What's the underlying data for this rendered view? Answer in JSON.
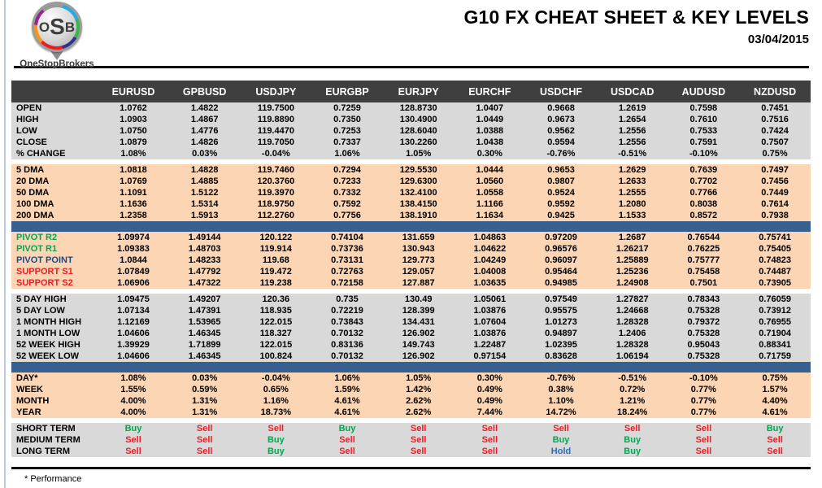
{
  "logo": {
    "abbr": "OSB",
    "name": "OneStopBrokers"
  },
  "header": {
    "title": "G10 FX CHEAT SHEET & KEY LEVELS",
    "date": "03/04/2015"
  },
  "colors": {
    "header_bg": "#3F3F3F",
    "row_gray": "#D9D9D9",
    "row_peach": "#FBD5B4",
    "divider_blue": "#376091",
    "buy_green": "#00A651",
    "sell_red": "#EE1C25",
    "hold_blue": "#2E6DB4",
    "pivot_navy": "#1F497D",
    "left_accent": "#b9cade"
  },
  "table": {
    "columns": [
      "EURUSD",
      "GPBUSD",
      "USDJPY",
      "EURGBP",
      "EURJPY",
      "EURCHF",
      "USDCHF",
      "USDCAD",
      "AUDUSD",
      "NZDUSD"
    ],
    "sections": [
      {
        "name": "ohlc",
        "bg": "gray",
        "rows": [
          {
            "label": "OPEN",
            "values": [
              "1.0762",
              "1.4822",
              "119.7500",
              "0.7259",
              "128.8730",
              "1.0407",
              "0.9668",
              "1.2619",
              "0.7598",
              "0.7451"
            ]
          },
          {
            "label": "HIGH",
            "values": [
              "1.0903",
              "1.4867",
              "119.8890",
              "0.7350",
              "130.4900",
              "1.0449",
              "0.9673",
              "1.2654",
              "0.7610",
              "0.7516"
            ]
          },
          {
            "label": "LOW",
            "values": [
              "1.0750",
              "1.4776",
              "119.4470",
              "0.7253",
              "128.6040",
              "1.0388",
              "0.9562",
              "1.2556",
              "0.7533",
              "0.7424"
            ]
          },
          {
            "label": "CLOSE",
            "values": [
              "1.0879",
              "1.4826",
              "119.7050",
              "0.7337",
              "130.2260",
              "1.0438",
              "0.9594",
              "1.2556",
              "0.7591",
              "0.7507"
            ]
          },
          {
            "label": "% CHANGE",
            "values": [
              "1.08%",
              "0.03%",
              "-0.04%",
              "1.06%",
              "1.05%",
              "0.30%",
              "-0.76%",
              "-0.51%",
              "-0.10%",
              "0.75%"
            ]
          }
        ]
      },
      {
        "name": "dma",
        "bg": "peach",
        "gap_before": true,
        "rows": [
          {
            "label": "5 DMA",
            "values": [
              "1.0818",
              "1.4828",
              "119.7460",
              "0.7294",
              "129.5530",
              "1.0444",
              "0.9653",
              "1.2629",
              "0.7639",
              "0.7497"
            ]
          },
          {
            "label": "20 DMA",
            "values": [
              "1.0769",
              "1.4885",
              "120.3760",
              "0.7233",
              "129.6300",
              "1.0560",
              "0.9807",
              "1.2633",
              "0.7702",
              "0.7456"
            ]
          },
          {
            "label": "50 DMA",
            "values": [
              "1.1091",
              "1.5122",
              "119.3970",
              "0.7332",
              "132.4100",
              "1.0558",
              "0.9524",
              "1.2555",
              "0.7766",
              "0.7449"
            ]
          },
          {
            "label": "100 DMA",
            "values": [
              "1.1636",
              "1.5314",
              "118.9750",
              "0.7592",
              "138.4150",
              "1.1166",
              "0.9592",
              "1.2080",
              "0.8038",
              "0.7614"
            ]
          },
          {
            "label": "200 DMA",
            "values": [
              "1.2358",
              "1.5913",
              "112.2760",
              "0.7756",
              "138.1910",
              "1.1634",
              "0.9425",
              "1.1533",
              "0.8572",
              "0.7938"
            ]
          }
        ]
      },
      {
        "name": "pivots",
        "bg": "peach",
        "divider_before": true,
        "rows": [
          {
            "label": "PIVOT R2",
            "color": "green",
            "values": [
              "1.09974",
              "1.49144",
              "120.122",
              "0.74104",
              "131.659",
              "1.04863",
              "0.97209",
              "1.2687",
              "0.76544",
              "0.75741"
            ]
          },
          {
            "label": "PIVOT R1",
            "color": "green",
            "values": [
              "1.09383",
              "1.48703",
              "119.914",
              "0.73736",
              "130.943",
              "1.04622",
              "0.96576",
              "1.26217",
              "0.76225",
              "0.75405"
            ]
          },
          {
            "label": "PIVOT POINT",
            "color": "navy",
            "values": [
              "1.0844",
              "1.48233",
              "119.68",
              "0.73131",
              "129.773",
              "1.04249",
              "0.96097",
              "1.25889",
              "0.75777",
              "0.74823"
            ]
          },
          {
            "label": "SUPPORT S1",
            "color": "red",
            "values": [
              "1.07849",
              "1.47792",
              "119.472",
              "0.72763",
              "129.057",
              "1.04008",
              "0.95464",
              "1.25236",
              "0.75458",
              "0.74487"
            ]
          },
          {
            "label": "SUPPORT S2",
            "color": "red",
            "values": [
              "1.06906",
              "1.47322",
              "119.238",
              "0.72158",
              "127.887",
              "1.03635",
              "0.94985",
              "1.24908",
              "0.7501",
              "0.73905"
            ]
          }
        ]
      },
      {
        "name": "ranges",
        "bg": "gray",
        "gap_before": true,
        "rows": [
          {
            "label": "5 DAY HIGH",
            "values": [
              "1.09475",
              "1.49207",
              "120.36",
              "0.735",
              "130.49",
              "1.05061",
              "0.97549",
              "1.27827",
              "0.78343",
              "0.76059"
            ]
          },
          {
            "label": "5 DAY LOW",
            "values": [
              "1.07134",
              "1.47391",
              "118.935",
              "0.72219",
              "128.399",
              "1.03876",
              "0.95575",
              "1.24668",
              "0.75328",
              "0.73912"
            ]
          },
          {
            "label": "1 MONTH HIGH",
            "values": [
              "1.12169",
              "1.53965",
              "122.015",
              "0.73843",
              "134.431",
              "1.07604",
              "1.01273",
              "1.28328",
              "0.79372",
              "0.76955"
            ]
          },
          {
            "label": "1 MONTH LOW",
            "values": [
              "1.04606",
              "1.46345",
              "118.327",
              "0.70132",
              "126.902",
              "1.03876",
              "0.94897",
              "1.2406",
              "0.75328",
              "0.71904"
            ]
          },
          {
            "label": "52 WEEK HIGH",
            "values": [
              "1.39929",
              "1.71899",
              "122.015",
              "0.83136",
              "149.743",
              "1.22487",
              "1.02395",
              "1.28328",
              "0.95043",
              "0.88341"
            ]
          },
          {
            "label": "52 WEEK LOW",
            "values": [
              "1.04606",
              "1.46345",
              "100.824",
              "0.70132",
              "126.902",
              "0.97154",
              "0.83628",
              "1.06194",
              "0.75328",
              "0.71759"
            ]
          }
        ]
      },
      {
        "name": "performance",
        "bg": "peach",
        "divider_before": true,
        "rows": [
          {
            "label": "DAY*",
            "values": [
              "1.08%",
              "0.03%",
              "-0.04%",
              "1.06%",
              "1.05%",
              "0.30%",
              "-0.76%",
              "-0.51%",
              "-0.10%",
              "0.75%"
            ]
          },
          {
            "label": "WEEK",
            "values": [
              "1.55%",
              "0.59%",
              "0.65%",
              "1.59%",
              "1.42%",
              "0.49%",
              "0.38%",
              "0.72%",
              "0.77%",
              "1.57%"
            ]
          },
          {
            "label": "MONTH",
            "values": [
              "4.00%",
              "1.31%",
              "1.16%",
              "4.61%",
              "2.62%",
              "0.49%",
              "1.10%",
              "1.21%",
              "0.77%",
              "4.40%"
            ]
          },
          {
            "label": "YEAR",
            "values": [
              "4.00%",
              "1.31%",
              "18.73%",
              "4.61%",
              "2.62%",
              "7.44%",
              "14.72%",
              "18.24%",
              "0.77%",
              "4.61%"
            ]
          }
        ]
      },
      {
        "name": "signals",
        "bg": "gray",
        "gap_before": true,
        "rows": [
          {
            "label": "SHORT TERM",
            "values": [
              "Buy",
              "Sell",
              "Sell",
              "Buy",
              "Sell",
              "Sell",
              "Sell",
              "Sell",
              "Sell",
              "Buy"
            ]
          },
          {
            "label": "MEDIUM TERM",
            "values": [
              "Sell",
              "Sell",
              "Buy",
              "Sell",
              "Sell",
              "Sell",
              "Buy",
              "Buy",
              "Sell",
              "Sell"
            ]
          },
          {
            "label": "LONG TERM",
            "values": [
              "Sell",
              "Sell",
              "Buy",
              "Sell",
              "Sell",
              "Sell",
              "Hold",
              "Buy",
              "Sell",
              "Sell"
            ]
          }
        ]
      }
    ]
  },
  "footnote": "* Performance"
}
